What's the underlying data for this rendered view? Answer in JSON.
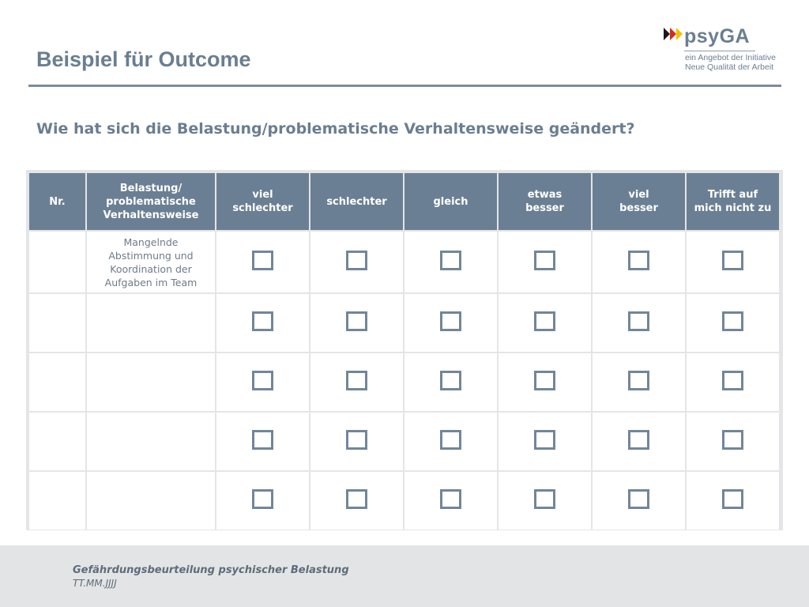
{
  "slide": {
    "title": "Beispiel für Outcome",
    "question": "Wie hat sich die Belastung/problematische Verhaltensweise geändert?"
  },
  "logo": {
    "name": "psyGA",
    "subtitle_line1": "ein Angebot der Initiative",
    "subtitle_line2": "Neue Qualität der Arbeit",
    "colors": [
      "#1a1a1a",
      "#d52b1e",
      "#f2c200"
    ]
  },
  "table": {
    "headers": [
      "Nr.",
      "Belastung/\nproblematische\nVerhaltensweise",
      "viel\nschlechter",
      "schlechter",
      "gleich",
      "etwas\nbesser",
      "viel\nbesser",
      "Trifft auf\nmich nicht zu"
    ],
    "rows": [
      {
        "nr": "",
        "item": "Mangelnde\nAbstimmung und\nKoordination der\nAufgaben im Team"
      },
      {
        "nr": "",
        "item": ""
      },
      {
        "nr": "",
        "item": ""
      },
      {
        "nr": "",
        "item": ""
      },
      {
        "nr": "",
        "item": ""
      }
    ],
    "checkbox_icon": "empty-checkbox",
    "header_color": "#6b7f94"
  },
  "footer": {
    "line1": "Gefährdungsbeurteilung psychischer Belastung",
    "line2": "TT.MM.JJJJ"
  }
}
